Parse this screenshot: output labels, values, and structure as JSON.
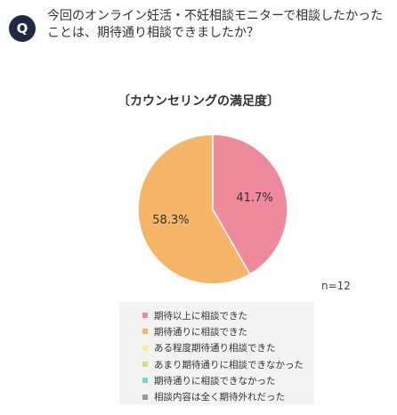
{
  "question": {
    "badge": "Q",
    "text": "今回のオンライン妊活・不妊相談モニターで相談したかったことは、期待通り相談できましたか？"
  },
  "chart_data": {
    "type": "pie",
    "title": "〔カウンセリングの満足度〕",
    "note": "n=12",
    "slices": [
      {
        "label": "期待以上に相談できた",
        "value": 41.7,
        "display": "41.7%",
        "color": "#ee8a9c"
      },
      {
        "label": "期待通りに相談できた",
        "value": 58.3,
        "display": "58.3%",
        "color": "#f7b56a"
      },
      {
        "label": "ある程度期待通り相談できた",
        "value": 0,
        "display": "",
        "color": "#f5ef9a"
      },
      {
        "label": "あまり期待通りに相談できなかった",
        "value": 0,
        "display": "",
        "color": "#c6e37e"
      },
      {
        "label": "期待通りに相談できなかった",
        "value": 0,
        "display": "",
        "color": "#7fd3cc"
      },
      {
        "label": "相談内容は全く期待外れだった",
        "value": 0,
        "display": "",
        "color": "#9a9a9a"
      }
    ],
    "legend_position": "bottom"
  }
}
